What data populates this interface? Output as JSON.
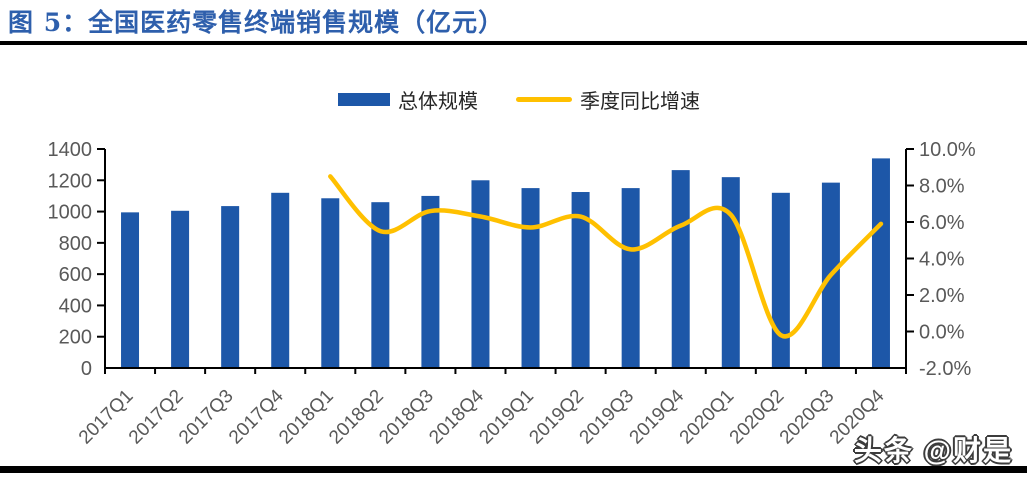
{
  "title": "图 5：全国医药零售终端销售规模（亿元）",
  "watermark": "头条 @财是",
  "legend": {
    "bar_label": "总体规模",
    "line_label": "季度同比增速"
  },
  "colors": {
    "bar": "#1D57A8",
    "line": "#FFC000",
    "title_text": "#2E5FAC",
    "axis_text": "#595959",
    "axis_line": "#000000"
  },
  "chart_data": {
    "type": "bar+line",
    "title": "全国医药零售终端销售规模（亿元）",
    "categories": [
      "2017Q1",
      "2017Q2",
      "2017Q3",
      "2017Q4",
      "2018Q1",
      "2018Q2",
      "2018Q3",
      "2018Q4",
      "2019Q1",
      "2019Q2",
      "2019Q3",
      "2019Q4",
      "2020Q1",
      "2020Q2",
      "2020Q3",
      "2020Q4"
    ],
    "series": [
      {
        "name": "总体规模",
        "type": "bar",
        "axis": "left",
        "unit": "亿元",
        "values": [
          995,
          1005,
          1035,
          1120,
          1085,
          1060,
          1100,
          1200,
          1150,
          1125,
          1150,
          1265,
          1220,
          1120,
          1185,
          1340
        ]
      },
      {
        "name": "季度同比增速",
        "type": "line",
        "axis": "right",
        "unit": "%",
        "values": [
          null,
          null,
          null,
          null,
          8.5,
          5.5,
          6.6,
          6.3,
          5.7,
          6.3,
          4.5,
          5.8,
          6.4,
          -0.2,
          3.1,
          5.9
        ]
      }
    ],
    "left_axis": {
      "min": 0,
      "max": 1400,
      "step": 200,
      "tick_labels": [
        "0",
        "200",
        "400",
        "600",
        "800",
        "1000",
        "1200",
        "1400"
      ]
    },
    "right_axis": {
      "min": -2,
      "max": 10,
      "step": 2,
      "tick_labels": [
        "-2.0%",
        "0.0%",
        "2.0%",
        "4.0%",
        "6.0%",
        "8.0%",
        "10.0%"
      ]
    },
    "grid": false,
    "legend_position": "top",
    "x_label_rotation": -45
  }
}
